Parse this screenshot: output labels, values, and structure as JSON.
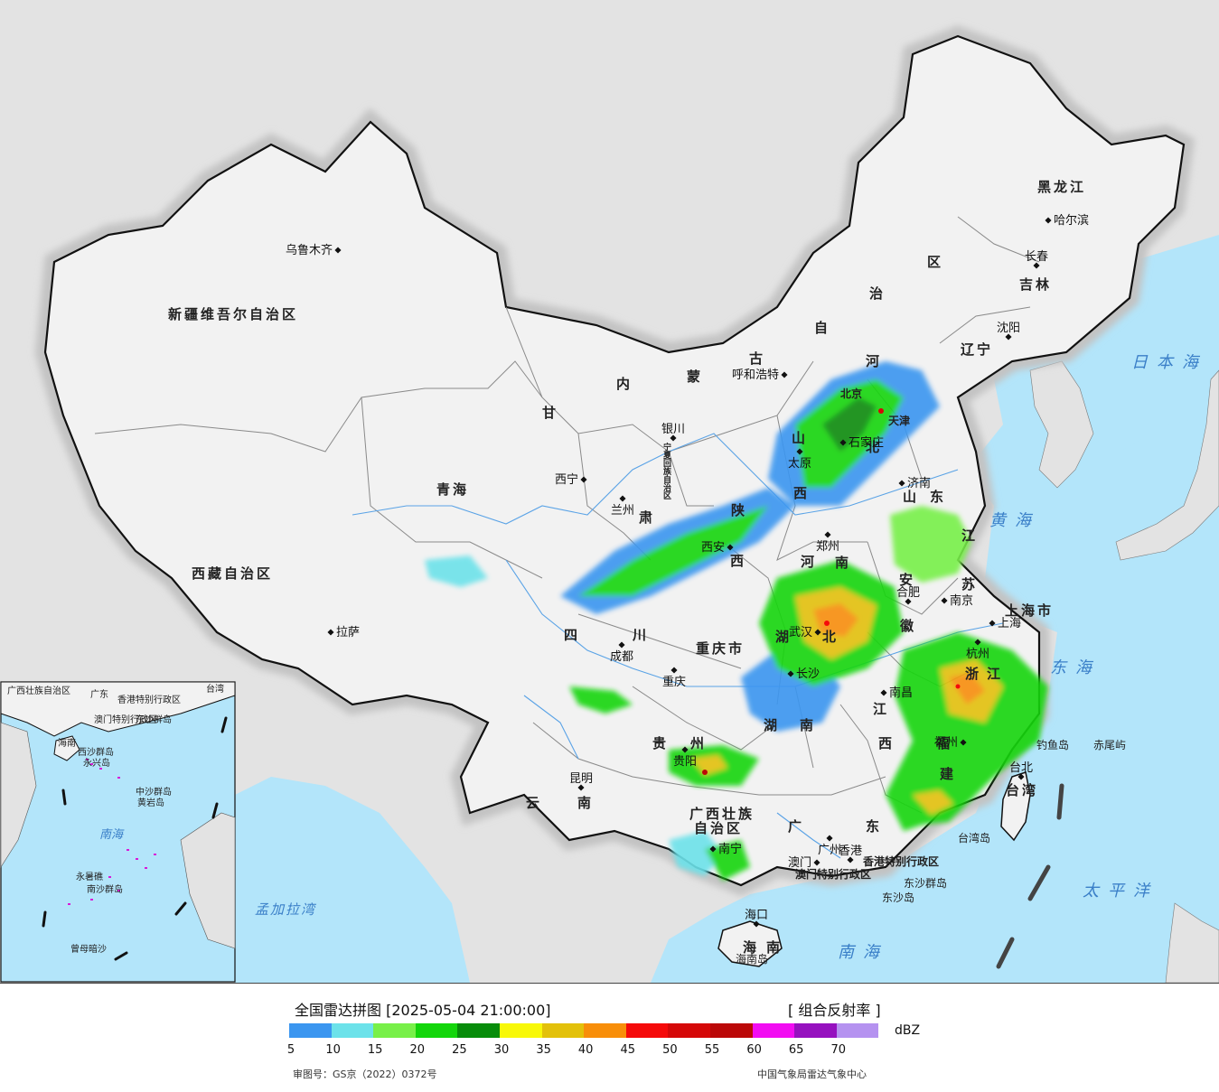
{
  "map": {
    "colors": {
      "sea": "#b3e5fa",
      "foreign_land": "#e3e3e3",
      "china_land": "#f2f2f2",
      "halo": "#c7c7c7",
      "border": "#111111",
      "province_border": "#888888",
      "river": "#5aa3e6"
    },
    "province_labels": [
      {
        "text": "新疆维吾尔自治区"
      },
      {
        "text": "西藏自治区"
      },
      {
        "text": "青海"
      },
      {
        "text": "甘"
      },
      {
        "text": "肃"
      },
      {
        "text": "内"
      },
      {
        "text": "蒙"
      },
      {
        "text": "古"
      },
      {
        "text": "自"
      },
      {
        "text": "治"
      },
      {
        "text": "区"
      },
      {
        "text": "黑龙江"
      },
      {
        "text": "吉林"
      },
      {
        "text": "辽宁"
      },
      {
        "text": "河"
      },
      {
        "text": "北"
      },
      {
        "text": "山"
      },
      {
        "text": "西"
      },
      {
        "text": "陕"
      },
      {
        "text": "西"
      },
      {
        "text": "宁夏回族自治区"
      },
      {
        "text": "河"
      },
      {
        "text": "南"
      },
      {
        "text": "山"
      },
      {
        "text": "东"
      },
      {
        "text": "江"
      },
      {
        "text": "苏"
      },
      {
        "text": "安"
      },
      {
        "text": "徽"
      },
      {
        "text": "上海市"
      },
      {
        "text": "浙"
      },
      {
        "text": "江"
      },
      {
        "text": "湖"
      },
      {
        "text": "北"
      },
      {
        "text": "湖"
      },
      {
        "text": "南"
      },
      {
        "text": "江"
      },
      {
        "text": "西"
      },
      {
        "text": "福"
      },
      {
        "text": "建"
      },
      {
        "text": "四"
      },
      {
        "text": "川"
      },
      {
        "text": "重庆市"
      },
      {
        "text": "贵"
      },
      {
        "text": "州"
      },
      {
        "text": "云"
      },
      {
        "text": "南"
      },
      {
        "text": "广西壮族"
      },
      {
        "text": "自治区"
      },
      {
        "text": "广"
      },
      {
        "text": "东"
      },
      {
        "text": "海"
      },
      {
        "text": "南"
      },
      {
        "text": "台湾"
      },
      {
        "text": "北京"
      },
      {
        "text": "天津"
      },
      {
        "text": "香港特别行政区"
      },
      {
        "text": "澳门特别行政区"
      }
    ],
    "cities": [
      {
        "name": "乌鲁木齐"
      },
      {
        "name": "拉萨"
      },
      {
        "name": "西宁"
      },
      {
        "name": "兰州"
      },
      {
        "name": "银川"
      },
      {
        "name": "呼和浩特"
      },
      {
        "name": "哈尔滨"
      },
      {
        "name": "长春"
      },
      {
        "name": "沈阳"
      },
      {
        "name": "济南"
      },
      {
        "name": "太原"
      },
      {
        "name": "石家庄"
      },
      {
        "name": "郑州"
      },
      {
        "name": "西安"
      },
      {
        "name": "合肥"
      },
      {
        "name": "南京"
      },
      {
        "name": "上海"
      },
      {
        "name": "杭州"
      },
      {
        "name": "武汉"
      },
      {
        "name": "长沙"
      },
      {
        "name": "南昌"
      },
      {
        "name": "福州"
      },
      {
        "name": "台北"
      },
      {
        "name": "成都"
      },
      {
        "name": "重庆"
      },
      {
        "name": "贵阳"
      },
      {
        "name": "昆明"
      },
      {
        "name": "南宁"
      },
      {
        "name": "广州"
      },
      {
        "name": "澳门"
      },
      {
        "name": "香港"
      },
      {
        "name": "海口"
      }
    ],
    "sea_labels": [
      {
        "text": "日本海"
      },
      {
        "text": "黄海"
      },
      {
        "text": "东海"
      },
      {
        "text": "太平洋"
      },
      {
        "text": "南海"
      },
      {
        "text": "孟加拉湾"
      }
    ],
    "island_labels": [
      {
        "text": "钓鱼岛"
      },
      {
        "text": "赤尾屿"
      },
      {
        "text": "台湾岛"
      },
      {
        "text": "东沙群岛"
      },
      {
        "text": "东沙岛"
      },
      {
        "text": "海南岛"
      }
    ],
    "inset_labels": [
      {
        "text": "广西壮族自治区"
      },
      {
        "text": "广东"
      },
      {
        "text": "台湾"
      },
      {
        "text": "香港特别行政区"
      },
      {
        "text": "澳门特别行政区"
      },
      {
        "text": "东沙群岛"
      },
      {
        "text": "海南"
      },
      {
        "text": "西沙群岛"
      },
      {
        "text": "永兴岛"
      },
      {
        "text": "中沙群岛"
      },
      {
        "text": "黄岩岛"
      },
      {
        "text": "南海"
      },
      {
        "text": "永暑礁"
      },
      {
        "text": "南沙群岛"
      },
      {
        "text": "曾母暗沙"
      }
    ]
  },
  "legend": {
    "title": "全国雷达拼图 [2025-05-04 21:00:00]",
    "product": "[ 组合反射率 ]",
    "unit": "dBZ",
    "scale": [
      {
        "color": "#3b96f0"
      },
      {
        "color": "#6ce2ea"
      },
      {
        "color": "#78f049"
      },
      {
        "color": "#13d60b"
      },
      {
        "color": "#078c0a"
      },
      {
        "color": "#f8f809"
      },
      {
        "color": "#e3c10a"
      },
      {
        "color": "#f88e09"
      },
      {
        "color": "#f50a0a"
      },
      {
        "color": "#d50808"
      },
      {
        "color": "#bb0808"
      },
      {
        "color": "#f20cf2"
      },
      {
        "color": "#9611bf"
      },
      {
        "color": "#b592f0"
      }
    ],
    "ticks": [
      "5",
      "10",
      "15",
      "20",
      "25",
      "30",
      "35",
      "40",
      "45",
      "50",
      "55",
      "60",
      "65",
      "70"
    ],
    "review_no": "审图号：GS京（2022）0372号",
    "agency": "中国气象局雷达气象中心"
  }
}
